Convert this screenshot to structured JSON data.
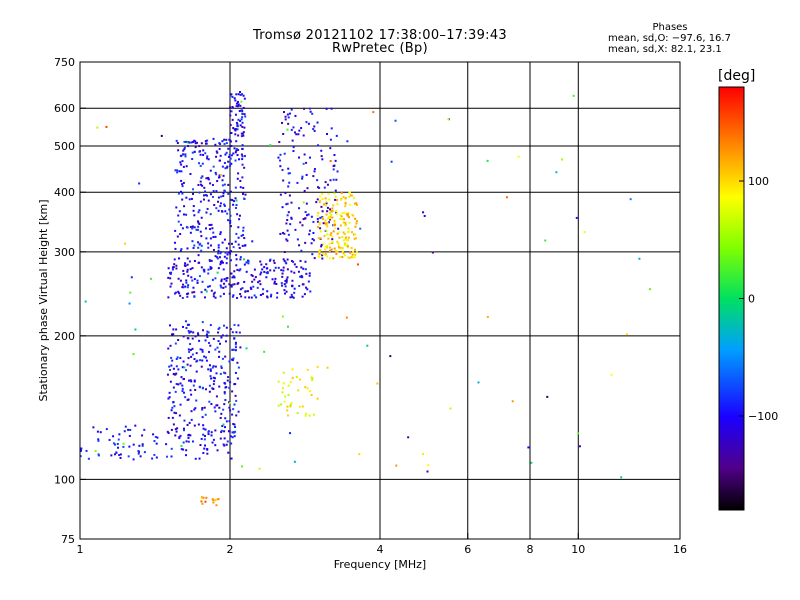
{
  "title_line1": "Tromsø 20121102 17:38:00–17:39:43",
  "title_line2": "RwPretec (Bp)",
  "stats": {
    "title": "Phases",
    "line_o": "mean, sd,O: −97.6, 16.7",
    "line_x": "mean, sd,X:  82.1, 23.1"
  },
  "colorbar": {
    "unit": "[deg]",
    "ticks": [
      "100",
      "0",
      "−100"
    ],
    "tick_values": [
      100,
      0,
      -100
    ],
    "range": [
      -180,
      180
    ]
  },
  "chart_data": {
    "type": "scatter",
    "xlabel": "Frequency [MHz]",
    "ylabel": "Stationary phase Virtual Height [km]",
    "xscale": "log",
    "yscale": "log",
    "xlim": [
      1,
      16
    ],
    "ylim": [
      75,
      750
    ],
    "xticks": [
      1,
      2,
      4,
      6,
      8,
      10,
      16
    ],
    "xtick_labels": [
      "1",
      "2",
      "4",
      "6",
      "8",
      "10",
      "16"
    ],
    "yticks": [
      75,
      100,
      200,
      300,
      400,
      500,
      600,
      750
    ],
    "ytick_labels": [
      "75",
      "100",
      "200",
      "300",
      "400",
      "500",
      "600",
      "750"
    ],
    "grid": true,
    "clusters": [
      {
        "name": "O-trace lower",
        "x_range": [
          1.0,
          2.05
        ],
        "y_range": [
          110,
          130
        ],
        "phase": -100,
        "count": 120
      },
      {
        "name": "O-trace E region",
        "x_range": [
          1.5,
          2.1
        ],
        "y_range": [
          125,
          215
        ],
        "phase": -100,
        "count": 260
      },
      {
        "name": "O-trace F1",
        "x_range": [
          1.5,
          2.9
        ],
        "y_range": [
          240,
          290
        ],
        "phase": -105,
        "count": 260
      },
      {
        "name": "O-trace F2 vertical",
        "x_range": [
          1.55,
          2.15
        ],
        "y_range": [
          290,
          520
        ],
        "phase": -100,
        "count": 320
      },
      {
        "name": "O-trace cusp",
        "x_range": [
          2.0,
          2.15
        ],
        "y_range": [
          520,
          650
        ],
        "phase": -105,
        "count": 60
      },
      {
        "name": "O-trace F2 rising",
        "x_range": [
          2.5,
          3.3
        ],
        "y_range": [
          290,
          600
        ],
        "phase": -110,
        "count": 160
      },
      {
        "name": "X-trace F2",
        "x_range": [
          3.0,
          3.6
        ],
        "y_range": [
          290,
          400
        ],
        "phase": 100,
        "count": 180
      },
      {
        "name": "X-trace E",
        "x_range": [
          2.5,
          3.0
        ],
        "y_range": [
          135,
          175
        ],
        "phase": 80,
        "count": 40
      },
      {
        "name": "X-trace low",
        "x_range": [
          1.75,
          1.9
        ],
        "y_range": [
          88,
          92
        ],
        "phase": 130,
        "count": 14
      },
      {
        "name": "Sparse noise",
        "x_range": [
          1.0,
          14.0
        ],
        "y_range": [
          100,
          650
        ],
        "phase": 0,
        "count": 90
      }
    ]
  }
}
